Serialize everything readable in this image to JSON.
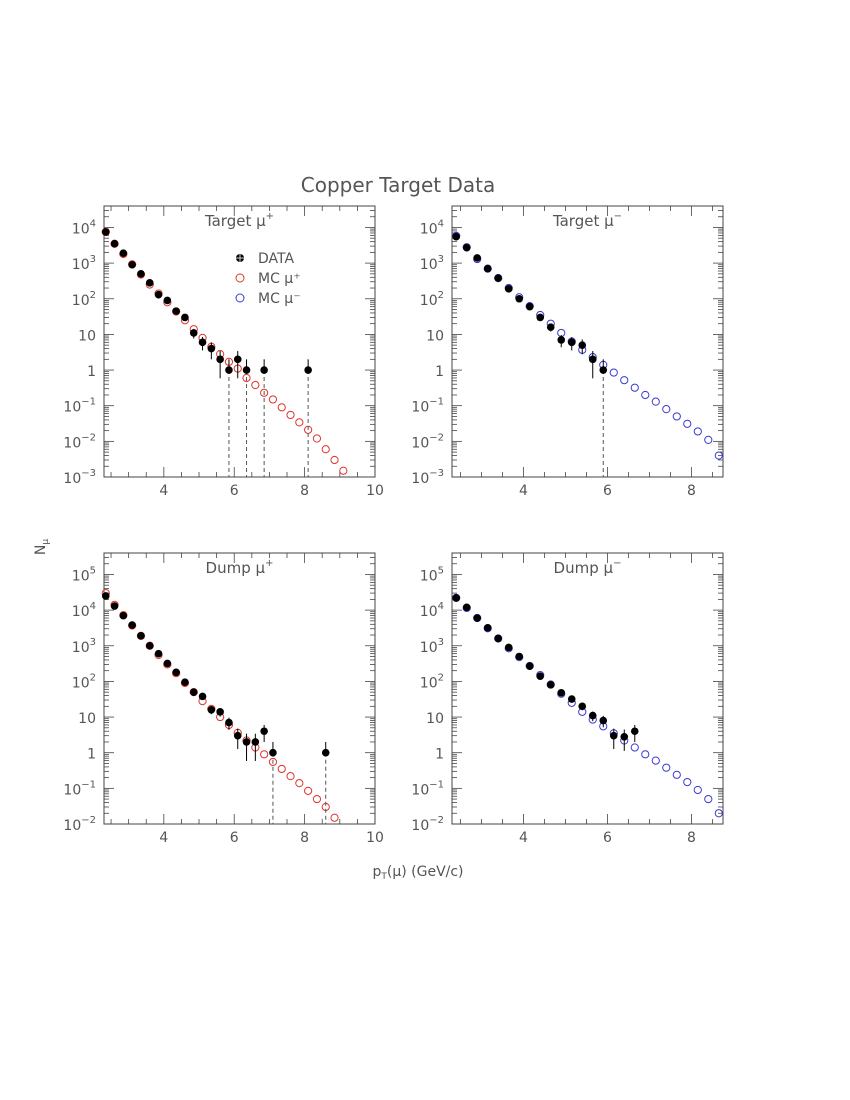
{
  "figure": {
    "title": "Copper Target Data",
    "xlabel": "p_T(μ) (GeV/c)",
    "xlabel_main": "p",
    "xlabel_sub": "T",
    "xlabel_rest": "(μ) (GeV/c)",
    "ylabel": "N_μ",
    "ylabel_main": "N",
    "ylabel_sub": "μ",
    "legend": {
      "data": "DATA",
      "mc_plus": "MC μ⁺",
      "mc_minus": "MC μ⁻"
    },
    "colors": {
      "data": "#000000",
      "mc_plus": "#e0332b",
      "mc_minus": "#3a3ad0",
      "frame": "#444444",
      "dash": "#555555"
    }
  },
  "chart_data": [
    {
      "type": "scatter",
      "title": "Target μ⁺",
      "title_main": "Target μ",
      "title_sup": "+",
      "xlim": [
        2.3,
        10.0
      ],
      "ylim": [
        0.001,
        40000
      ],
      "yscale": "log",
      "xticks": [
        "4",
        "6",
        "8",
        "10"
      ],
      "xtick_values": [
        4,
        6,
        8,
        10
      ],
      "yticks": [
        {
          "value": 10000,
          "base": "10",
          "exp": "4"
        },
        {
          "value": 1000,
          "base": "10",
          "exp": "3"
        },
        {
          "value": 100,
          "base": "10",
          "exp": "2"
        },
        {
          "value": 10,
          "base": "10",
          "exp": ""
        },
        {
          "value": 1,
          "base": "1",
          "exp": ""
        },
        {
          "value": 0.1,
          "base": "10",
          "exp": "−1"
        },
        {
          "value": 0.01,
          "base": "10",
          "exp": "−2"
        },
        {
          "value": 0.001,
          "base": "10",
          "exp": "−3"
        }
      ],
      "legend": "inside",
      "series": [
        {
          "name": "DATA",
          "x": [
            2.35,
            2.6,
            2.85,
            3.1,
            3.35,
            3.6,
            3.85,
            4.1,
            4.35,
            4.6,
            4.85,
            5.1,
            5.35,
            5.6,
            5.85,
            6.1,
            6.35,
            6.85,
            8.1
          ],
          "y": [
            7500,
            3500,
            1900,
            900,
            500,
            280,
            130,
            90,
            45,
            30,
            11,
            6,
            4,
            2,
            1,
            2,
            1,
            1,
            1
          ]
        },
        {
          "name": "MC μ⁺",
          "x": [
            2.35,
            2.6,
            2.85,
            3.1,
            3.35,
            3.6,
            3.85,
            4.1,
            4.35,
            4.6,
            4.85,
            5.1,
            5.35,
            5.6,
            5.85,
            6.1,
            6.35,
            6.6,
            6.85,
            7.1,
            7.35,
            7.6,
            7.85,
            8.1,
            8.35,
            8.6,
            8.85,
            9.1
          ],
          "y": [
            7500,
            3500,
            1800,
            920,
            480,
            250,
            140,
            80,
            44,
            25,
            14,
            8,
            4.5,
            2.8,
            1.7,
            1.1,
            0.6,
            0.38,
            0.23,
            0.15,
            0.09,
            0.055,
            0.034,
            0.021,
            0.012,
            0.006,
            0.003,
            0.0015
          ]
        }
      ]
    },
    {
      "type": "scatter",
      "title": "Target μ⁻",
      "title_main": "Target μ",
      "title_sup": "−",
      "xlim": [
        2.3,
        8.75
      ],
      "ylim": [
        0.001,
        40000
      ],
      "yscale": "log",
      "xticks": [
        "4",
        "6",
        "8"
      ],
      "xtick_values": [
        4,
        6,
        8
      ],
      "yticks": [
        {
          "value": 10000,
          "base": "10",
          "exp": "4"
        },
        {
          "value": 1000,
          "base": "10",
          "exp": "3"
        },
        {
          "value": 100,
          "base": "10",
          "exp": "2"
        },
        {
          "value": 10,
          "base": "10",
          "exp": ""
        },
        {
          "value": 1,
          "base": "1",
          "exp": ""
        },
        {
          "value": 0.1,
          "base": "10",
          "exp": "−1"
        },
        {
          "value": 0.01,
          "base": "10",
          "exp": "−2"
        },
        {
          "value": 0.001,
          "base": "10",
          "exp": "−3"
        }
      ],
      "series": [
        {
          "name": "DATA",
          "x": [
            2.4,
            2.65,
            2.9,
            3.15,
            3.4,
            3.65,
            3.9,
            4.15,
            4.4,
            4.65,
            4.9,
            5.15,
            5.4,
            5.65,
            5.9
          ],
          "y": [
            5500,
            2700,
            1400,
            700,
            380,
            190,
            100,
            60,
            30,
            16,
            7,
            6,
            5,
            2,
            1
          ]
        },
        {
          "name": "MC μ⁻",
          "x": [
            2.4,
            2.65,
            2.9,
            3.15,
            3.4,
            3.65,
            3.9,
            4.15,
            4.4,
            4.65,
            4.9,
            5.15,
            5.4,
            5.65,
            5.9,
            6.15,
            6.4,
            6.65,
            6.9,
            7.15,
            7.4,
            7.65,
            7.9,
            8.15,
            8.4,
            8.65
          ],
          "y": [
            5800,
            2800,
            1300,
            700,
            380,
            200,
            110,
            62,
            35,
            20,
            11,
            6.3,
            3.7,
            2.3,
            1.4,
            0.85,
            0.52,
            0.32,
            0.2,
            0.13,
            0.08,
            0.05,
            0.031,
            0.019,
            0.011,
            0.004
          ]
        }
      ]
    },
    {
      "type": "scatter",
      "title": "Dump μ⁺",
      "title_main": "Dump μ",
      "title_sup": "+",
      "xlim": [
        2.3,
        10.0
      ],
      "ylim": [
        0.01,
        400000
      ],
      "yscale": "log",
      "xticks": [
        "4",
        "6",
        "8",
        "10"
      ],
      "xtick_values": [
        4,
        6,
        8,
        10
      ],
      "yticks": [
        {
          "value": 100000,
          "base": "10",
          "exp": "5"
        },
        {
          "value": 10000,
          "base": "10",
          "exp": "4"
        },
        {
          "value": 1000,
          "base": "10",
          "exp": "3"
        },
        {
          "value": 100,
          "base": "10",
          "exp": "2"
        },
        {
          "value": 10,
          "base": "10",
          "exp": ""
        },
        {
          "value": 1,
          "base": "1",
          "exp": ""
        },
        {
          "value": 0.1,
          "base": "10",
          "exp": "−1"
        },
        {
          "value": 0.01,
          "base": "10",
          "exp": "−2"
        }
      ],
      "series": [
        {
          "name": "DATA",
          "x": [
            2.35,
            2.6,
            2.85,
            3.1,
            3.35,
            3.6,
            3.85,
            4.1,
            4.35,
            4.6,
            4.85,
            5.1,
            5.35,
            5.6,
            5.85,
            6.1,
            6.35,
            6.6,
            6.85,
            7.1,
            8.6
          ],
          "y": [
            25000,
            13000,
            7000,
            3800,
            1900,
            1000,
            600,
            320,
            180,
            95,
            50,
            38,
            16,
            14,
            7,
            3,
            2,
            2,
            4,
            1,
            1
          ]
        },
        {
          "name": "MC μ⁺",
          "x": [
            2.35,
            2.6,
            2.85,
            3.1,
            3.35,
            3.6,
            3.85,
            4.1,
            4.35,
            4.6,
            4.85,
            5.1,
            5.35,
            5.6,
            5.85,
            6.1,
            6.35,
            6.6,
            6.85,
            7.1,
            7.35,
            7.6,
            7.85,
            8.1,
            8.35,
            8.6,
            8.85
          ],
          "y": [
            30000,
            14000,
            7200,
            3700,
            1900,
            1000,
            550,
            300,
            170,
            90,
            50,
            28,
            17,
            10,
            6,
            3.6,
            2.2,
            1.4,
            0.9,
            0.55,
            0.35,
            0.22,
            0.14,
            0.085,
            0.05,
            0.03,
            0.015
          ]
        }
      ]
    },
    {
      "type": "scatter",
      "title": "Dump μ⁻",
      "title_main": "Dump μ",
      "title_sup": "−",
      "xlim": [
        2.3,
        8.75
      ],
      "ylim": [
        0.01,
        400000
      ],
      "yscale": "log",
      "xticks": [
        "4",
        "6",
        "8"
      ],
      "xtick_values": [
        4,
        6,
        8
      ],
      "yticks": [
        {
          "value": 100000,
          "base": "10",
          "exp": "5"
        },
        {
          "value": 10000,
          "base": "10",
          "exp": "4"
        },
        {
          "value": 1000,
          "base": "10",
          "exp": "3"
        },
        {
          "value": 100,
          "base": "10",
          "exp": "2"
        },
        {
          "value": 10,
          "base": "10",
          "exp": ""
        },
        {
          "value": 1,
          "base": "1",
          "exp": ""
        },
        {
          "value": 0.1,
          "base": "10",
          "exp": "−1"
        },
        {
          "value": 0.01,
          "base": "10",
          "exp": "−2"
        }
      ],
      "series": [
        {
          "name": "DATA",
          "x": [
            2.4,
            2.65,
            2.9,
            3.15,
            3.4,
            3.65,
            3.9,
            4.15,
            4.4,
            4.65,
            4.9,
            5.15,
            5.4,
            5.65,
            5.9,
            6.15,
            6.4,
            6.65
          ],
          "y": [
            22000,
            12000,
            6000,
            3200,
            1600,
            900,
            500,
            270,
            140,
            80,
            48,
            32,
            20,
            11,
            8,
            3,
            2.8,
            4
          ]
        },
        {
          "name": "MC μ⁻",
          "x": [
            2.4,
            2.65,
            2.9,
            3.15,
            3.4,
            3.65,
            3.9,
            4.15,
            4.4,
            4.65,
            4.9,
            5.15,
            5.4,
            5.65,
            5.9,
            6.15,
            6.4,
            6.65,
            6.9,
            7.15,
            7.4,
            7.65,
            7.9,
            8.15,
            8.4,
            8.65
          ],
          "y": [
            22000,
            11500,
            6000,
            3100,
            1600,
            850,
            480,
            270,
            150,
            82,
            45,
            25,
            14,
            8.5,
            5.5,
            3.5,
            2.2,
            1.4,
            0.9,
            0.6,
            0.38,
            0.24,
            0.15,
            0.09,
            0.05,
            0.02
          ]
        }
      ]
    }
  ]
}
